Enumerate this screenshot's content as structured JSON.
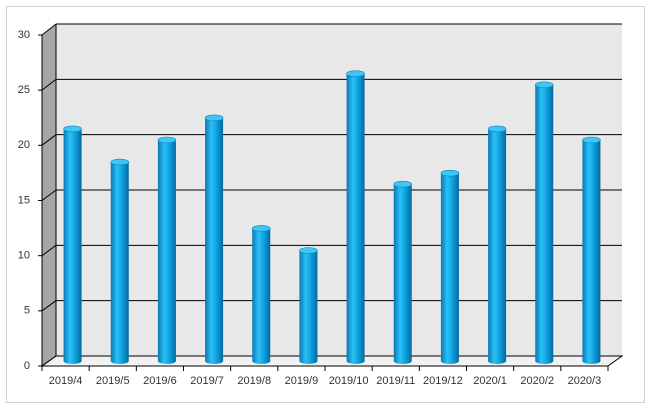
{
  "chart_data": {
    "type": "bar",
    "categories": [
      "2019/4",
      "2019/5",
      "2019/6",
      "2019/7",
      "2019/8",
      "2019/9",
      "2019/10",
      "2019/11",
      "2019/12",
      "2020/1",
      "2020/2",
      "2020/3"
    ],
    "values": [
      21,
      18,
      20,
      22,
      12,
      10,
      26,
      16,
      17,
      21,
      25,
      20
    ],
    "color": "#0ea5e9",
    "ylim": [
      0,
      30
    ],
    "yticks": [
      0,
      5,
      10,
      15,
      20,
      25,
      30
    ],
    "grid": true
  }
}
